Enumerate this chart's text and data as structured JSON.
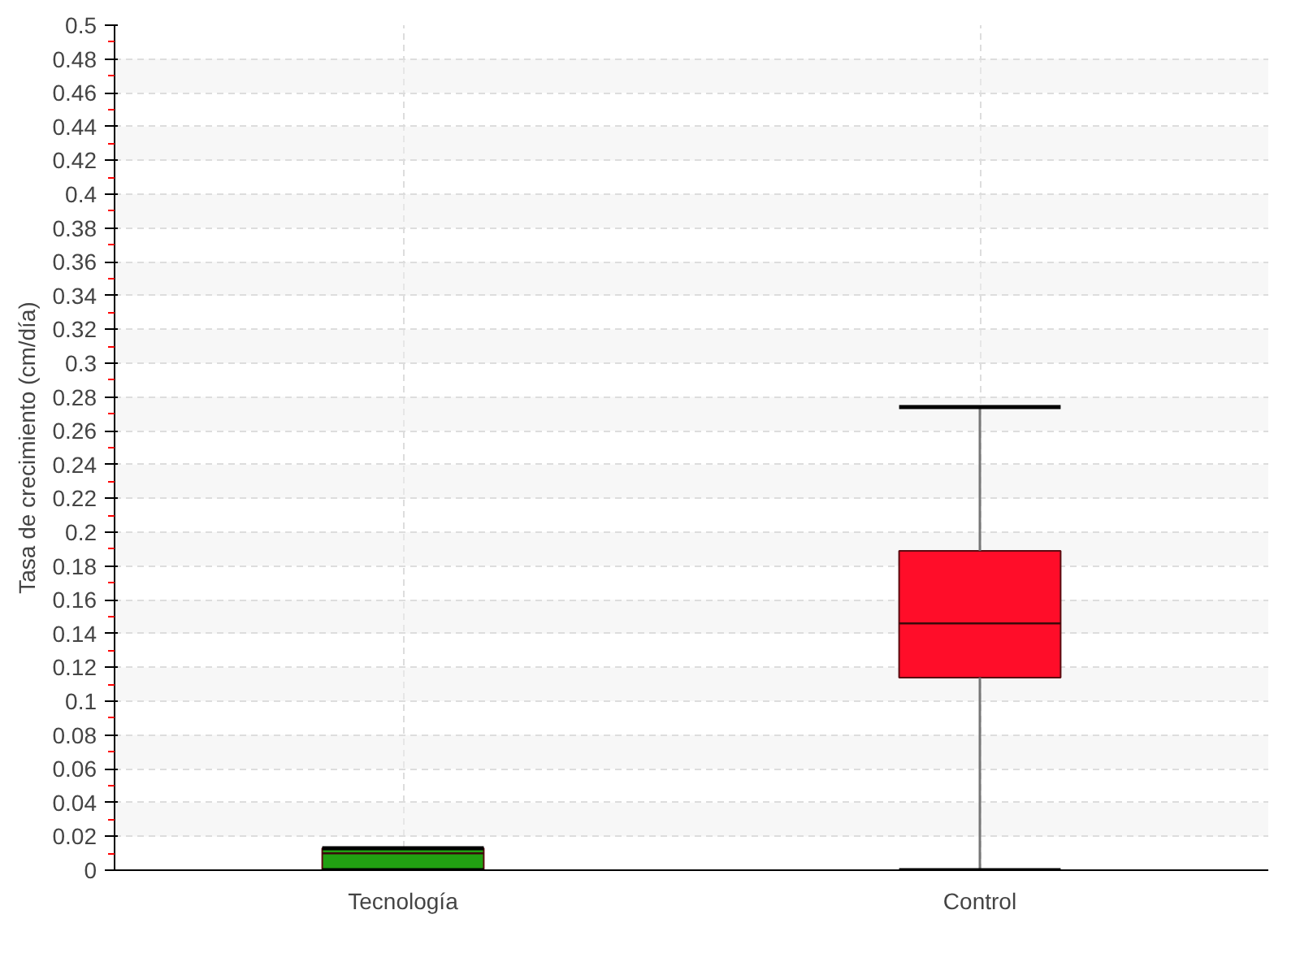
{
  "chart_data": {
    "type": "box",
    "ylabel": "Tasa de crecimiento (cm/día)",
    "categories": [
      "Tecnología",
      "Control"
    ],
    "boxes": [
      {
        "low": 0,
        "q1": 0,
        "median": 0.01,
        "q3": 0.013,
        "high": 0.013
      },
      {
        "low": 0,
        "q1": 0.114,
        "median": 0.146,
        "q3": 0.189,
        "high": 0.274
      }
    ],
    "colors": [
      "#21a012",
      "#ff0d29"
    ],
    "ylim": [
      0,
      0.5
    ],
    "yticks": [
      0,
      0.02,
      0.04,
      0.06,
      0.08,
      0.1,
      0.12,
      0.14,
      0.16,
      0.18,
      0.2,
      0.22,
      0.24,
      0.26,
      0.28,
      0.3,
      0.32,
      0.34,
      0.36,
      0.38,
      0.4,
      0.42,
      0.44,
      0.46,
      0.48,
      0.5
    ],
    "grid": true
  }
}
